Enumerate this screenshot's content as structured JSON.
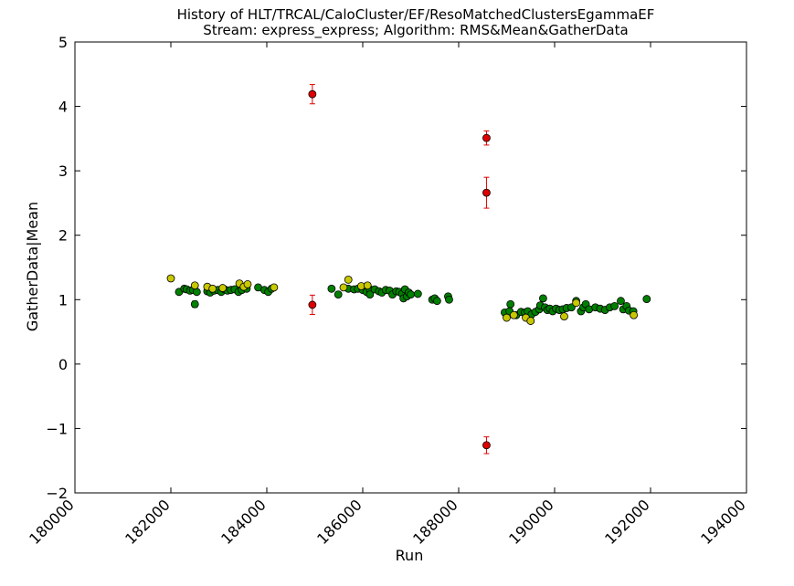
{
  "chart_data": {
    "type": "scatter",
    "title": "History of HLT/TRCAL/CaloCluster/EF/ResoMatchedClustersEgammaEF",
    "subtitle": "Stream: express_express; Algorithm: RMS&Mean&GatherData",
    "xlabel": "Run",
    "ylabel": "GatherData|Mean",
    "xlim": [
      180000,
      194000
    ],
    "ylim": [
      -2,
      5
    ],
    "x_ticks": [
      180000,
      182000,
      184000,
      186000,
      188000,
      190000,
      192000,
      194000
    ],
    "y_ticks": [
      -2,
      -1,
      0,
      1,
      2,
      3,
      4,
      5
    ],
    "x_tick_labels": [
      "180000",
      "182000",
      "184000",
      "186000",
      "188000",
      "190000",
      "192000",
      "194000"
    ],
    "y_tick_labels": [
      "−2",
      "−1",
      "0",
      "1",
      "2",
      "3",
      "4",
      "5"
    ],
    "grid": false,
    "colors": {
      "green": "#008000",
      "yellow": "#c8c800",
      "red": "#e00000",
      "errorbar_green": "#00a000",
      "errorbar_yellow": "#c0c000",
      "errorbar_red": "#e00000"
    },
    "series": [
      {
        "color": "green",
        "points": [
          {
            "x": 182170,
            "y": 1.12,
            "err": 0.02
          },
          {
            "x": 182280,
            "y": 1.17,
            "err": 0.02
          },
          {
            "x": 182330,
            "y": 1.16,
            "err": 0.02
          },
          {
            "x": 182400,
            "y": 1.14,
            "err": 0.03
          },
          {
            "x": 182460,
            "y": 1.15,
            "err": 0.02
          },
          {
            "x": 182500,
            "y": 0.93,
            "err": 0.05
          },
          {
            "x": 182540,
            "y": 1.12,
            "err": 0.02
          },
          {
            "x": 182760,
            "y": 1.13,
            "err": 0.02
          },
          {
            "x": 182820,
            "y": 1.11,
            "err": 0.02
          },
          {
            "x": 182900,
            "y": 1.14,
            "err": 0.02
          },
          {
            "x": 182980,
            "y": 1.15,
            "err": 0.02
          },
          {
            "x": 183050,
            "y": 1.12,
            "err": 0.02
          },
          {
            "x": 183120,
            "y": 1.16,
            "err": 0.02
          },
          {
            "x": 183180,
            "y": 1.14,
            "err": 0.02
          },
          {
            "x": 183250,
            "y": 1.15,
            "err": 0.02
          },
          {
            "x": 183330,
            "y": 1.16,
            "err": 0.02
          },
          {
            "x": 183410,
            "y": 1.12,
            "err": 0.03
          },
          {
            "x": 183480,
            "y": 1.15,
            "err": 0.02
          },
          {
            "x": 183580,
            "y": 1.17,
            "err": 0.02
          },
          {
            "x": 183820,
            "y": 1.19,
            "err": 0.02
          },
          {
            "x": 183950,
            "y": 1.15,
            "err": 0.02
          },
          {
            "x": 184030,
            "y": 1.12,
            "err": 0.03
          },
          {
            "x": 184100,
            "y": 1.17,
            "err": 0.02
          },
          {
            "x": 185350,
            "y": 1.17,
            "err": 0.02
          },
          {
            "x": 185490,
            "y": 1.08,
            "err": 0.02
          },
          {
            "x": 185700,
            "y": 1.17,
            "err": 0.02
          },
          {
            "x": 185820,
            "y": 1.16,
            "err": 0.02
          },
          {
            "x": 185900,
            "y": 1.17,
            "err": 0.02
          },
          {
            "x": 186000,
            "y": 1.15,
            "err": 0.02
          },
          {
            "x": 186080,
            "y": 1.12,
            "err": 0.02
          },
          {
            "x": 186150,
            "y": 1.16,
            "err": 0.02
          },
          {
            "x": 186150,
            "y": 1.08,
            "err": 0.03
          },
          {
            "x": 186250,
            "y": 1.16,
            "err": 0.02
          },
          {
            "x": 186340,
            "y": 1.13,
            "err": 0.02
          },
          {
            "x": 186400,
            "y": 1.11,
            "err": 0.02
          },
          {
            "x": 186480,
            "y": 1.15,
            "err": 0.02
          },
          {
            "x": 186560,
            "y": 1.14,
            "err": 0.02
          },
          {
            "x": 186620,
            "y": 1.08,
            "err": 0.02
          },
          {
            "x": 186700,
            "y": 1.13,
            "err": 0.02
          },
          {
            "x": 186760,
            "y": 1.12,
            "err": 0.02
          },
          {
            "x": 186820,
            "y": 1.09,
            "err": 0.02
          },
          {
            "x": 186850,
            "y": 1.02,
            "err": 0.03
          },
          {
            "x": 186880,
            "y": 1.16,
            "err": 0.02
          },
          {
            "x": 186920,
            "y": 1.05,
            "err": 0.03
          },
          {
            "x": 186960,
            "y": 1.11,
            "err": 0.02
          },
          {
            "x": 187000,
            "y": 1.08,
            "err": 0.02
          },
          {
            "x": 187150,
            "y": 1.09,
            "err": 0.02
          },
          {
            "x": 187450,
            "y": 1.0,
            "err": 0.02
          },
          {
            "x": 187500,
            "y": 1.02,
            "err": 0.02
          },
          {
            "x": 187550,
            "y": 0.98,
            "err": 0.02
          },
          {
            "x": 187780,
            "y": 1.05,
            "err": 0.02
          },
          {
            "x": 187800,
            "y": 1.0,
            "err": 0.02
          },
          {
            "x": 188960,
            "y": 0.8,
            "err": 0.02
          },
          {
            "x": 189060,
            "y": 0.82,
            "err": 0.02
          },
          {
            "x": 189080,
            "y": 0.93,
            "err": 0.03
          },
          {
            "x": 189200,
            "y": 0.76,
            "err": 0.02
          },
          {
            "x": 189300,
            "y": 0.81,
            "err": 0.02
          },
          {
            "x": 189380,
            "y": 0.8,
            "err": 0.02
          },
          {
            "x": 189440,
            "y": 0.82,
            "err": 0.02
          },
          {
            "x": 189520,
            "y": 0.77,
            "err": 0.02
          },
          {
            "x": 189600,
            "y": 0.81,
            "err": 0.02
          },
          {
            "x": 189680,
            "y": 0.85,
            "err": 0.02
          },
          {
            "x": 189700,
            "y": 0.91,
            "err": 0.02
          },
          {
            "x": 189760,
            "y": 1.02,
            "err": 0.02
          },
          {
            "x": 189800,
            "y": 0.88,
            "err": 0.02
          },
          {
            "x": 189850,
            "y": 0.84,
            "err": 0.02
          },
          {
            "x": 189900,
            "y": 0.86,
            "err": 0.02
          },
          {
            "x": 189960,
            "y": 0.82,
            "err": 0.02
          },
          {
            "x": 190030,
            "y": 0.86,
            "err": 0.02
          },
          {
            "x": 190100,
            "y": 0.84,
            "err": 0.02
          },
          {
            "x": 190170,
            "y": 0.85,
            "err": 0.02
          },
          {
            "x": 190250,
            "y": 0.87,
            "err": 0.02
          },
          {
            "x": 190350,
            "y": 0.88,
            "err": 0.02
          },
          {
            "x": 190450,
            "y": 0.98,
            "err": 0.02
          },
          {
            "x": 190550,
            "y": 0.82,
            "err": 0.02
          },
          {
            "x": 190600,
            "y": 0.88,
            "err": 0.02
          },
          {
            "x": 190650,
            "y": 0.93,
            "err": 0.02
          },
          {
            "x": 190720,
            "y": 0.85,
            "err": 0.02
          },
          {
            "x": 190850,
            "y": 0.88,
            "err": 0.02
          },
          {
            "x": 190950,
            "y": 0.86,
            "err": 0.02
          },
          {
            "x": 191050,
            "y": 0.84,
            "err": 0.02
          },
          {
            "x": 191150,
            "y": 0.88,
            "err": 0.02
          },
          {
            "x": 191250,
            "y": 0.9,
            "err": 0.02
          },
          {
            "x": 191380,
            "y": 0.98,
            "err": 0.02
          },
          {
            "x": 191430,
            "y": 0.85,
            "err": 0.02
          },
          {
            "x": 191500,
            "y": 0.9,
            "err": 0.02
          },
          {
            "x": 191550,
            "y": 0.83,
            "err": 0.02
          },
          {
            "x": 191640,
            "y": 0.82,
            "err": 0.02
          },
          {
            "x": 191920,
            "y": 1.01,
            "err": 0.02
          }
        ]
      },
      {
        "color": "yellow",
        "points": [
          {
            "x": 182000,
            "y": 1.33,
            "err": 0.02
          },
          {
            "x": 182500,
            "y": 1.22,
            "err": 0.02
          },
          {
            "x": 182760,
            "y": 1.2,
            "err": 0.02
          },
          {
            "x": 182870,
            "y": 1.17,
            "err": 0.02
          },
          {
            "x": 183080,
            "y": 1.18,
            "err": 0.02
          },
          {
            "x": 183430,
            "y": 1.25,
            "err": 0.02
          },
          {
            "x": 183520,
            "y": 1.2,
            "err": 0.02
          },
          {
            "x": 183600,
            "y": 1.24,
            "err": 0.02
          },
          {
            "x": 184150,
            "y": 1.19,
            "err": 0.02
          },
          {
            "x": 185600,
            "y": 1.19,
            "err": 0.02
          },
          {
            "x": 185700,
            "y": 1.31,
            "err": 0.02
          },
          {
            "x": 185970,
            "y": 1.21,
            "err": 0.02
          },
          {
            "x": 186100,
            "y": 1.22,
            "err": 0.02
          },
          {
            "x": 189000,
            "y": 0.72,
            "err": 0.02
          },
          {
            "x": 189150,
            "y": 0.76,
            "err": 0.02
          },
          {
            "x": 189400,
            "y": 0.72,
            "err": 0.02
          },
          {
            "x": 189500,
            "y": 0.67,
            "err": 0.02
          },
          {
            "x": 190200,
            "y": 0.74,
            "err": 0.02
          },
          {
            "x": 190450,
            "y": 0.95,
            "err": 0.02
          },
          {
            "x": 191650,
            "y": 0.76,
            "err": 0.02
          }
        ]
      },
      {
        "color": "red",
        "points": [
          {
            "x": 184950,
            "y": 4.19,
            "err": 0.15
          },
          {
            "x": 184950,
            "y": 0.92,
            "err": 0.15
          },
          {
            "x": 188580,
            "y": 3.51,
            "err": 0.11
          },
          {
            "x": 188580,
            "y": 2.66,
            "err": 0.24
          },
          {
            "x": 188580,
            "y": -1.26,
            "err": 0.13
          }
        ]
      }
    ]
  }
}
